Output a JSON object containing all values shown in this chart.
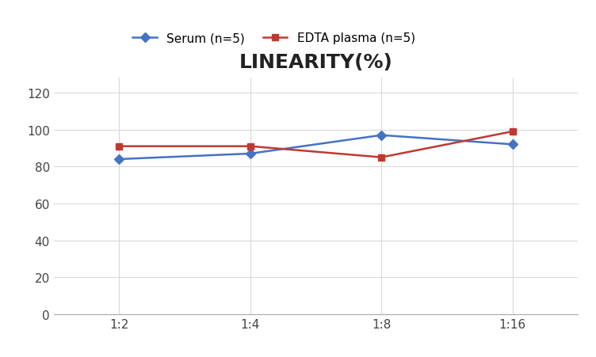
{
  "title": "LINEARITY(%)",
  "x_labels": [
    "1:2",
    "1:4",
    "1:8",
    "1:16"
  ],
  "serum_values": [
    84,
    87,
    97,
    92
  ],
  "edta_values": [
    91,
    91,
    85,
    99
  ],
  "serum_label": "Serum (n=5)",
  "edta_label": "EDTA plasma (n=5)",
  "serum_color": "#4472C4",
  "edta_color": "#BE3A31",
  "ylim": [
    0,
    128
  ],
  "yticks": [
    0,
    20,
    40,
    60,
    80,
    100,
    120
  ],
  "title_fontsize": 18,
  "legend_fontsize": 11,
  "tick_fontsize": 11,
  "background_color": "#FFFFFF",
  "grid_color": "#D9D9D9"
}
